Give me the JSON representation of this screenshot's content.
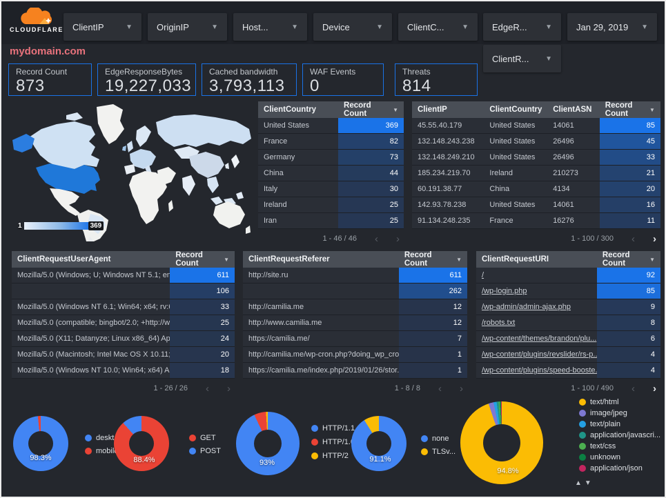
{
  "topbar": {
    "brand": "CLOUDFLARE",
    "filters": [
      {
        "label": "ClientIP"
      },
      {
        "label": "OriginIP"
      },
      {
        "label": "Host..."
      },
      {
        "label": "Device"
      },
      {
        "label": "ClientC..."
      },
      {
        "label": "EdgeR..."
      }
    ],
    "date_filter": {
      "label": "Jan 29, 2019"
    },
    "secondary_filter": {
      "label": "ClientR..."
    }
  },
  "page_title": "mydomain.com",
  "scorecards": [
    {
      "label": "Record Count",
      "value": "873"
    },
    {
      "label": "EdgeResponseBytes",
      "value": "19,227,033"
    },
    {
      "label": "Cached bandwidth",
      "value": "3,793,113"
    },
    {
      "label": "WAF Events",
      "value": "0"
    },
    {
      "label": "Threats",
      "value": "814"
    }
  ],
  "map": {
    "legend_min": "1",
    "legend_max": "369"
  },
  "tables": [
    {
      "id": "client-country",
      "columns": [
        "ClientCountry",
        "Record Count"
      ],
      "metric_col": 1,
      "max": 369,
      "rows": [
        [
          "United States",
          369
        ],
        [
          "France",
          82
        ],
        [
          "Germany",
          73
        ],
        [
          "China",
          44
        ],
        [
          "Italy",
          30
        ],
        [
          "Ireland",
          25
        ],
        [
          "Iran",
          25
        ]
      ],
      "pagination": "1 - 46 / 46",
      "prev_active": false,
      "next_active": false
    },
    {
      "id": "client-ip",
      "columns": [
        "ClientIP",
        "ClientCountry",
        "ClientASN",
        "Record Count"
      ],
      "metric_col": 3,
      "max": 85,
      "rows": [
        [
          "45.55.40.179",
          "United States",
          "14061",
          85
        ],
        [
          "132.148.243.238",
          "United States",
          "26496",
          45
        ],
        [
          "132.148.249.210",
          "United States",
          "26496",
          33
        ],
        [
          "185.234.219.70",
          "Ireland",
          "210273",
          21
        ],
        [
          "60.191.38.77",
          "China",
          "4134",
          20
        ],
        [
          "142.93.78.238",
          "United States",
          "14061",
          16
        ],
        [
          "91.134.248.235",
          "France",
          "16276",
          11
        ]
      ],
      "pagination": "1 - 100 / 300",
      "prev_active": false,
      "next_active": true
    },
    {
      "id": "user-agent",
      "columns": [
        "ClientRequestUserAgent",
        "Record Count"
      ],
      "metric_col": 1,
      "max": 611,
      "rows": [
        [
          "Mozilla/5.0 (Windows; U; Windows NT 5.1; en-U...",
          611
        ],
        [
          "",
          106
        ],
        [
          "Mozilla/5.0 (Windows NT 6.1; Win64; x64; rv:64...",
          33
        ],
        [
          "Mozilla/5.0 (compatible; bingbot/2.0; +http://w...",
          25
        ],
        [
          "Mozilla/5.0 (X11; Datanyze; Linux x86_64) Appl...",
          24
        ],
        [
          "Mozilla/5.0 (Macintosh; Intel Mac OS X 10.11; r...",
          20
        ],
        [
          "Mozilla/5.0 (Windows NT 10.0; Win64; x64) App...",
          18
        ]
      ],
      "pagination": "1 - 26 / 26",
      "prev_active": false,
      "next_active": false
    },
    {
      "id": "referer",
      "columns": [
        "ClientRequestReferer",
        "Record Count"
      ],
      "metric_col": 1,
      "max": 611,
      "rows": [
        [
          "http://site.ru",
          611
        ],
        [
          "",
          262
        ],
        [
          "http://camilia.me",
          12
        ],
        [
          "http://www.camilia.me",
          12
        ],
        [
          "https://camilia.me/",
          7
        ],
        [
          "http://camilia.me/wp-cron.php?doing_wp_cron...",
          1
        ],
        [
          "https://camilia.me/index.php/2019/01/26/stor...",
          1
        ]
      ],
      "pagination": "1 - 8 / 8",
      "prev_active": false,
      "next_active": false
    },
    {
      "id": "request-uri",
      "columns": [
        "ClientRequestURI",
        "Record Count"
      ],
      "metric_col": 1,
      "max": 92,
      "link_dimension": true,
      "rows": [
        [
          "/",
          92
        ],
        [
          "/wp-login.php",
          85
        ],
        [
          "/wp-admin/admin-ajax.php",
          9
        ],
        [
          "/robots.txt",
          8
        ],
        [
          "/wp-content/themes/brandon/plu...",
          6
        ],
        [
          "/wp-content/plugins/revslider/rs-p...",
          4
        ],
        [
          "/wp-content/plugins/speed-booste...",
          4
        ]
      ],
      "pagination": "1 - 100 / 490",
      "prev_active": false,
      "next_active": true
    }
  ],
  "donuts": [
    {
      "id": "device-type",
      "percent_label": "98.3%",
      "slices": [
        {
          "label": "deskt...",
          "value": 98.3,
          "color": "#4285f4"
        },
        {
          "label": "mobile",
          "value": 1.7,
          "color": "#ea4335"
        }
      ]
    },
    {
      "id": "http-method",
      "percent_label": "88.4%",
      "slices": [
        {
          "label": "GET",
          "value": 88.4,
          "color": "#ea4335"
        },
        {
          "label": "POST",
          "value": 11.6,
          "color": "#4285f4"
        }
      ]
    },
    {
      "id": "http-version",
      "percent_label": "93%",
      "slices": [
        {
          "label": "HTTP/1.1",
          "value": 93,
          "color": "#4285f4"
        },
        {
          "label": "HTTP/1.0",
          "value": 6.1,
          "color": "#ea4335"
        },
        {
          "label": "HTTP/2",
          "value": 0.9,
          "color": "#fbbc04"
        }
      ]
    },
    {
      "id": "tls-version",
      "percent_label": "91.1%",
      "slices": [
        {
          "label": "none",
          "value": 91.1,
          "color": "#4285f4"
        },
        {
          "label": "TLSv...",
          "value": 8.9,
          "color": "#fbbc04"
        }
      ]
    },
    {
      "id": "content-type",
      "percent_label": "94.8%",
      "scroll_arrows": "▲▼",
      "slices": [
        {
          "label": "text/html",
          "value": 94.8,
          "color": "#fbbc04"
        },
        {
          "label": "image/jpeg",
          "value": 2.0,
          "color": "#7e79d2"
        },
        {
          "label": "text/plain",
          "value": 1.2,
          "color": "#24a0e3"
        },
        {
          "label": "application/javascri...",
          "value": 0.8,
          "color": "#1f9588"
        },
        {
          "label": "text/css",
          "value": 0.5,
          "color": "#4caf50"
        },
        {
          "label": "unknown",
          "value": 0.4,
          "color": "#0b8043"
        },
        {
          "label": "application/json",
          "value": 0.3,
          "color": "#c2255f"
        }
      ]
    }
  ],
  "colors": {
    "accent": "#1a73e8",
    "heat_high": "#1a73e8",
    "heat_low": "#273349",
    "title_pink": "#e8727c"
  }
}
